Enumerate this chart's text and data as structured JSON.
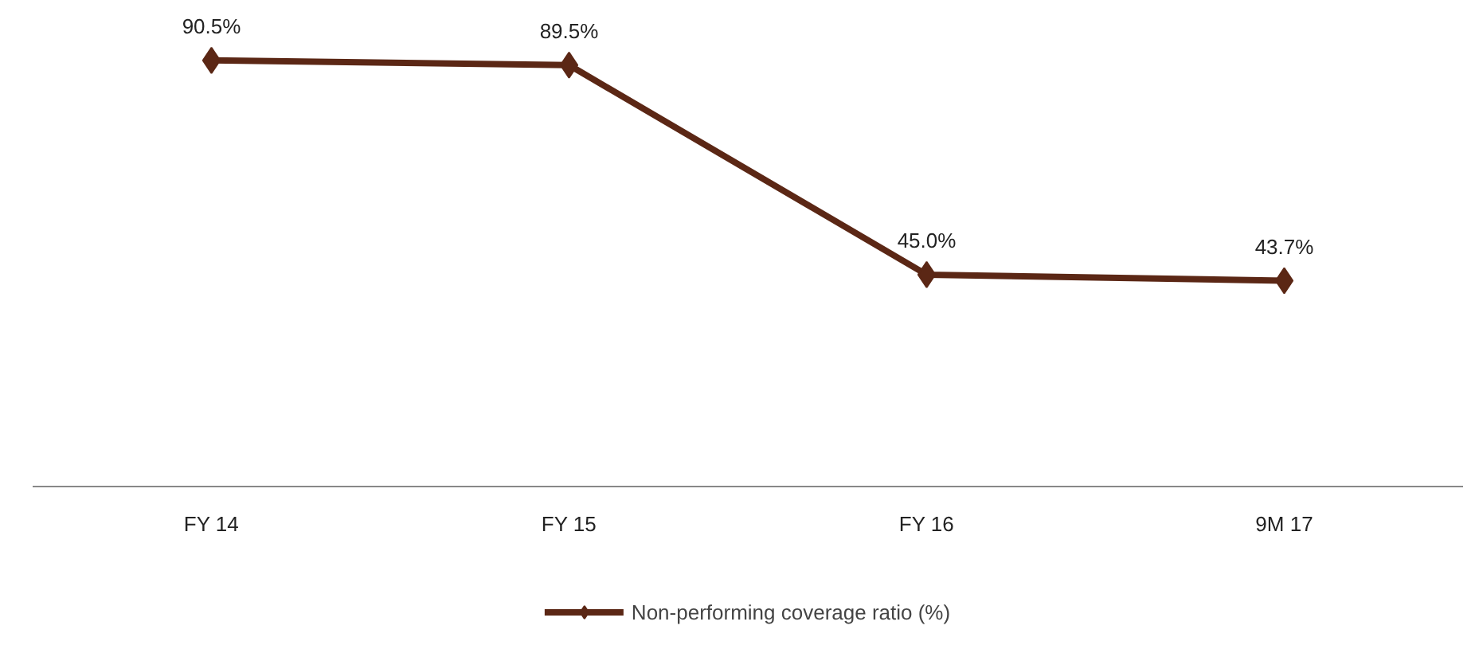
{
  "chart_data": {
    "type": "line",
    "categories": [
      "FY 14",
      "FY 15",
      "FY 16",
      "9M 17"
    ],
    "series": [
      {
        "name": "Non-performing coverage ratio (%)",
        "color": "#5b2715",
        "values": [
          90.5,
          89.5,
          45.0,
          43.7
        ],
        "value_labels": [
          "90.5%",
          "89.5%",
          "45.0%",
          "43.7%"
        ]
      }
    ],
    "marker": "diamond",
    "legend": "bottom",
    "grid": false
  }
}
